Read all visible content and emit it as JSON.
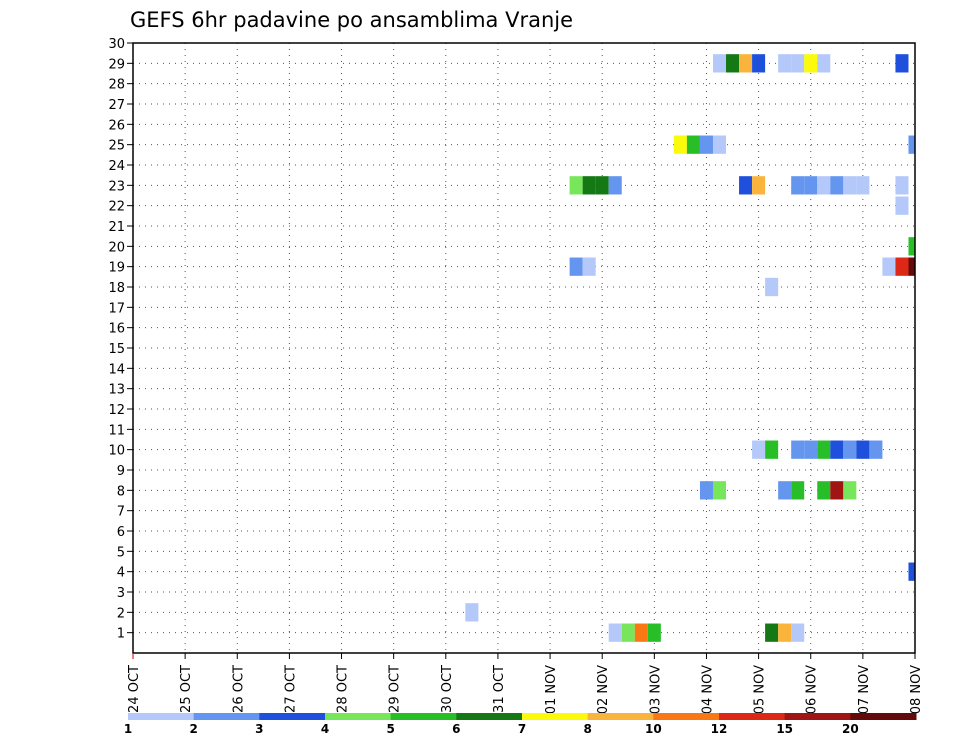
{
  "chart_data": {
    "type": "heatmap",
    "title": "GEFS 6hr padavine po ansamblima Vranje",
    "xlabel": "",
    "ylabel": "",
    "x_tick_labels": [
      "24 OCT",
      "25 OCT",
      "26 OCT",
      "27 OCT",
      "28 OCT",
      "29 OCT",
      "30 OCT",
      "31 OCT",
      "01 NOV",
      "02 NOV",
      "03 NOV",
      "04 NOV",
      "05 NOV",
      "06 NOV",
      "07 NOV",
      "08 NOV"
    ],
    "x_range_days": [
      0,
      15
    ],
    "y_range": [
      0,
      30
    ],
    "y_ticks": [
      1,
      2,
      3,
      4,
      5,
      6,
      7,
      8,
      9,
      10,
      11,
      12,
      13,
      14,
      15,
      16,
      17,
      18,
      19,
      20,
      21,
      22,
      23,
      24,
      25,
      26,
      27,
      28,
      29,
      30
    ],
    "grid": true,
    "step_hours": 6,
    "legend_position": "bottom",
    "legend": {
      "thresholds": [
        "1",
        "2",
        "3",
        "4",
        "5",
        "6",
        "7",
        "8",
        "10",
        "12",
        "15",
        "20"
      ],
      "colors": [
        "#b4c8fa",
        "#6496f0",
        "#1e50dc",
        "#78e65a",
        "#28be28",
        "#147814",
        "#fafa0a",
        "#fab43c",
        "#fa7814",
        "#dc2814",
        "#a01414",
        "#640a0a"
      ]
    },
    "cells": [
      {
        "member": 29,
        "day": 11.25,
        "level": 0
      },
      {
        "member": 29,
        "day": 11.5,
        "level": 5
      },
      {
        "member": 29,
        "day": 11.75,
        "level": 7
      },
      {
        "member": 29,
        "day": 12.0,
        "level": 2
      },
      {
        "member": 29,
        "day": 12.5,
        "level": 0
      },
      {
        "member": 29,
        "day": 12.75,
        "level": 0
      },
      {
        "member": 29,
        "day": 13.0,
        "level": 6
      },
      {
        "member": 29,
        "day": 13.25,
        "level": 0
      },
      {
        "member": 29,
        "day": 14.75,
        "level": 2
      },
      {
        "member": 25,
        "day": 10.5,
        "level": 6
      },
      {
        "member": 25,
        "day": 10.75,
        "level": 4
      },
      {
        "member": 25,
        "day": 11.0,
        "level": 1
      },
      {
        "member": 25,
        "day": 11.25,
        "level": 0
      },
      {
        "member": 25,
        "day": 15.0,
        "level": 1
      },
      {
        "member": 23,
        "day": 8.5,
        "level": 3
      },
      {
        "member": 23,
        "day": 8.75,
        "level": 5
      },
      {
        "member": 23,
        "day": 9.0,
        "level": 5
      },
      {
        "member": 23,
        "day": 9.25,
        "level": 1
      },
      {
        "member": 23,
        "day": 11.75,
        "level": 2
      },
      {
        "member": 23,
        "day": 12.0,
        "level": 7
      },
      {
        "member": 23,
        "day": 12.75,
        "level": 1
      },
      {
        "member": 23,
        "day": 13.0,
        "level": 1
      },
      {
        "member": 23,
        "day": 13.25,
        "level": 0
      },
      {
        "member": 23,
        "day": 13.5,
        "level": 1
      },
      {
        "member": 23,
        "day": 13.75,
        "level": 0
      },
      {
        "member": 23,
        "day": 14.0,
        "level": 0
      },
      {
        "member": 23,
        "day": 14.75,
        "level": 0
      },
      {
        "member": 22,
        "day": 14.75,
        "level": 0
      },
      {
        "member": 20,
        "day": 15.0,
        "level": 4
      },
      {
        "member": 19,
        "day": 8.5,
        "level": 1
      },
      {
        "member": 19,
        "day": 8.75,
        "level": 0
      },
      {
        "member": 19,
        "day": 14.5,
        "level": 0
      },
      {
        "member": 19,
        "day": 14.75,
        "level": 9
      },
      {
        "member": 19,
        "day": 15.0,
        "level": 11
      },
      {
        "member": 18,
        "day": 12.25,
        "level": 0
      },
      {
        "member": 10,
        "day": 12.0,
        "level": 0
      },
      {
        "member": 10,
        "day": 12.25,
        "level": 4
      },
      {
        "member": 10,
        "day": 12.75,
        "level": 1
      },
      {
        "member": 10,
        "day": 13.0,
        "level": 1
      },
      {
        "member": 10,
        "day": 13.25,
        "level": 4
      },
      {
        "member": 10,
        "day": 13.5,
        "level": 2
      },
      {
        "member": 10,
        "day": 13.75,
        "level": 1
      },
      {
        "member": 10,
        "day": 14.0,
        "level": 2
      },
      {
        "member": 10,
        "day": 14.25,
        "level": 1
      },
      {
        "member": 8,
        "day": 11.0,
        "level": 1
      },
      {
        "member": 8,
        "day": 11.25,
        "level": 3
      },
      {
        "member": 8,
        "day": 12.5,
        "level": 1
      },
      {
        "member": 8,
        "day": 12.75,
        "level": 4
      },
      {
        "member": 8,
        "day": 13.25,
        "level": 4
      },
      {
        "member": 8,
        "day": 13.5,
        "level": 10
      },
      {
        "member": 8,
        "day": 13.75,
        "level": 3
      },
      {
        "member": 4,
        "day": 15.0,
        "level": 2
      },
      {
        "member": 2,
        "day": 6.5,
        "level": 0
      },
      {
        "member": 1,
        "day": 9.25,
        "level": 0
      },
      {
        "member": 1,
        "day": 9.5,
        "level": 3
      },
      {
        "member": 1,
        "day": 9.75,
        "level": 8
      },
      {
        "member": 1,
        "day": 10.0,
        "level": 4
      },
      {
        "member": 1,
        "day": 12.25,
        "level": 5
      },
      {
        "member": 1,
        "day": 12.5,
        "level": 7
      },
      {
        "member": 1,
        "day": 12.75,
        "level": 0
      }
    ]
  }
}
